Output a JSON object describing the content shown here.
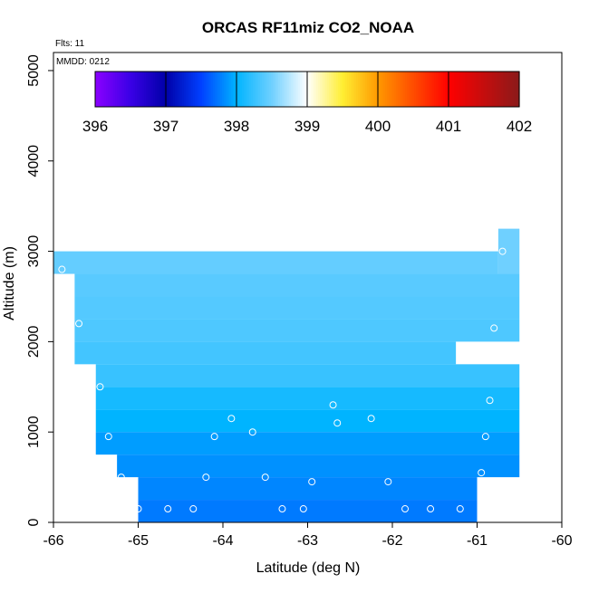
{
  "chart_data": {
    "type": "heatmap",
    "title": "ORCAS RF11miz CO2_NOAA",
    "annotations": [
      "Flts: 11",
      "MMDD: 0212"
    ],
    "xlabel": "Latitude (deg N)",
    "ylabel": "Altitude (m)",
    "xlim": [
      -66,
      -60
    ],
    "ylim": [
      0,
      5200
    ],
    "x_ticks": [
      "-66",
      "-65",
      "-64",
      "-63",
      "-62",
      "-61",
      "-60"
    ],
    "y_ticks": [
      "0",
      "1000",
      "2000",
      "3000",
      "4000",
      "5000"
    ],
    "colorbar": {
      "min": 396,
      "max": 402,
      "tick_labels": [
        "396",
        "397",
        "398",
        "399",
        "400",
        "401",
        "402"
      ],
      "stops": [
        {
          "v": 396.0,
          "c": "#8b00ff"
        },
        {
          "v": 396.5,
          "c": "#3a00e6"
        },
        {
          "v": 397.0,
          "c": "#0000a8"
        },
        {
          "v": 397.5,
          "c": "#0040ff"
        },
        {
          "v": 398.0,
          "c": "#00b4ff"
        },
        {
          "v": 398.5,
          "c": "#6fd0ff"
        },
        {
          "v": 399.0,
          "c": "#ffffff"
        },
        {
          "v": 399.5,
          "c": "#ffee33"
        },
        {
          "v": 400.0,
          "c": "#ff9900"
        },
        {
          "v": 401.0,
          "c": "#ff0000"
        },
        {
          "v": 402.0,
          "c": "#8b1a1a"
        }
      ]
    },
    "cells": [
      {
        "lat": [
          -66.0,
          -61.0
        ],
        "alt": [
          2750,
          3000
        ],
        "co2": 398.45
      },
      {
        "lat": [
          -61.0,
          -60.75
        ],
        "alt": [
          2750,
          3000
        ],
        "co2": 398.45
      },
      {
        "lat": [
          -60.75,
          -60.5
        ],
        "alt": [
          2750,
          3250
        ],
        "co2": 398.5
      },
      {
        "lat": [
          -65.75,
          -60.5
        ],
        "alt": [
          2500,
          2750
        ],
        "co2": 398.4
      },
      {
        "lat": [
          -65.75,
          -60.5
        ],
        "alt": [
          2250,
          2500
        ],
        "co2": 398.38
      },
      {
        "lat": [
          -65.75,
          -60.5
        ],
        "alt": [
          2000,
          2250
        ],
        "co2": 398.35
      },
      {
        "lat": [
          -65.75,
          -61.25
        ],
        "alt": [
          1750,
          2000
        ],
        "co2": 398.3
      },
      {
        "lat": [
          -65.5,
          -60.5
        ],
        "alt": [
          1500,
          1750
        ],
        "co2": 398.25
      },
      {
        "lat": [
          -65.5,
          -60.5
        ],
        "alt": [
          1250,
          1500
        ],
        "co2": 398.1
      },
      {
        "lat": [
          -65.5,
          -60.5
        ],
        "alt": [
          1000,
          1250
        ],
        "co2": 398.0
      },
      {
        "lat": [
          -65.5,
          -60.5
        ],
        "alt": [
          750,
          1000
        ],
        "co2": 397.9
      },
      {
        "lat": [
          -65.25,
          -60.5
        ],
        "alt": [
          500,
          750
        ],
        "co2": 397.85
      },
      {
        "lat": [
          -65.0,
          -61.0
        ],
        "alt": [
          250,
          500
        ],
        "co2": 397.8
      },
      {
        "lat": [
          -65.0,
          -61.0
        ],
        "alt": [
          0,
          250
        ],
        "co2": 397.75
      }
    ],
    "points": [
      {
        "lat": -65.9,
        "alt": 2800
      },
      {
        "lat": -60.7,
        "alt": 3000
      },
      {
        "lat": -65.7,
        "alt": 2200
      },
      {
        "lat": -60.8,
        "alt": 2150
      },
      {
        "lat": -65.45,
        "alt": 1500
      },
      {
        "lat": -60.85,
        "alt": 1350
      },
      {
        "lat": -62.7,
        "alt": 1300
      },
      {
        "lat": -63.9,
        "alt": 1150
      },
      {
        "lat": -62.65,
        "alt": 1100
      },
      {
        "lat": -62.25,
        "alt": 1150
      },
      {
        "lat": -63.65,
        "alt": 1000
      },
      {
        "lat": -64.1,
        "alt": 950
      },
      {
        "lat": -65.35,
        "alt": 950
      },
      {
        "lat": -60.9,
        "alt": 950
      },
      {
        "lat": -65.2,
        "alt": 500
      },
      {
        "lat": -64.2,
        "alt": 500
      },
      {
        "lat": -63.5,
        "alt": 500
      },
      {
        "lat": -62.95,
        "alt": 450
      },
      {
        "lat": -62.05,
        "alt": 450
      },
      {
        "lat": -60.95,
        "alt": 550
      },
      {
        "lat": -65.0,
        "alt": 150
      },
      {
        "lat": -64.65,
        "alt": 150
      },
      {
        "lat": -64.35,
        "alt": 150
      },
      {
        "lat": -63.3,
        "alt": 150
      },
      {
        "lat": -63.05,
        "alt": 150
      },
      {
        "lat": -61.85,
        "alt": 150
      },
      {
        "lat": -61.55,
        "alt": 150
      },
      {
        "lat": -61.2,
        "alt": 150
      }
    ]
  }
}
